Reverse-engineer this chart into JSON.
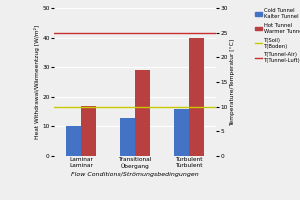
{
  "categories": [
    "Laminar\nLaminar",
    "Transitional\nÜbergang",
    "Turbulent\nTurbulent"
  ],
  "cold_tunnel": [
    10,
    13,
    16
  ],
  "hot_tunnel": [
    17,
    29,
    40
  ],
  "cold_color": "#4472c4",
  "hot_color": "#b94040",
  "t_soil": 10.0,
  "t_tunnel_air": 25.0,
  "t_soil_color": "#c8c800",
  "t_air_color": "#c83030",
  "ylabel_left": "Heat Withdrawal/Wärmeentzug [W/m²]",
  "ylabel_right": "Temperature/Temperatur [°C]",
  "xlabel": "Flow Conditions/Strömungsbedingungen",
  "ylim_left": [
    0,
    50
  ],
  "ylim_right": [
    0,
    30
  ],
  "yticks_left": [
    0,
    10,
    20,
    30,
    40,
    50
  ],
  "yticks_right": [
    0,
    5,
    10,
    15,
    20,
    25,
    30
  ],
  "background_color": "#efefef",
  "bar_width": 0.28,
  "group_positions": [
    0,
    1,
    2
  ],
  "figsize": [
    3.0,
    2.0
  ],
  "dpi": 100
}
